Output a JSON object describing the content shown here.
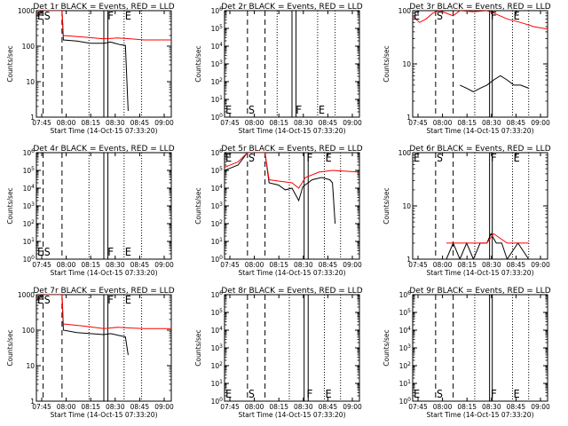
{
  "x_ticks": [
    "07:45",
    "08:00",
    "08:15",
    "08:30",
    "08:45",
    "09:00"
  ],
  "x_label": "Start Time (14-Oct-15 07:33:20)",
  "y_label": "Counts/sec",
  "colors": {
    "events": "#000000",
    "lld": "#ff0000"
  },
  "chart_data": [
    {
      "type": "line",
      "title": "Det 1r BLACK = Events, RED = LLD",
      "ylim": [
        1,
        1000
      ],
      "yticks": [
        1,
        10,
        100,
        1000
      ],
      "ytick_labels": [
        "1",
        "10",
        "100",
        "1000"
      ],
      "markers": [
        "E",
        "S",
        "F",
        "E"
      ],
      "marker_x": [
        0.0,
        0.05,
        0.52,
        0.65
      ],
      "vlines_dashed": [
        0.05,
        0.19
      ],
      "vlines_solid": [
        0.5,
        0.53
      ],
      "vlines_dotted": [
        0.39,
        0.65,
        0.78
      ],
      "series": [
        {
          "name": "BLACK = Events",
          "points": [
            [
              0.0,
              700
            ],
            [
              0.04,
              900
            ],
            [
              0.05,
              1000
            ],
            [
              0.19,
              1000
            ],
            [
              0.2,
              150
            ],
            [
              0.3,
              140
            ],
            [
              0.4,
              120
            ],
            [
              0.5,
              120
            ],
            [
              0.55,
              130
            ],
            [
              0.62,
              110
            ],
            [
              0.66,
              105
            ],
            [
              0.68,
              1.5
            ]
          ]
        },
        {
          "name": "RED = LLD",
          "points": [
            [
              0.0,
              800
            ],
            [
              0.04,
              1000
            ],
            [
              0.19,
              1000
            ],
            [
              0.2,
              200
            ],
            [
              0.35,
              180
            ],
            [
              0.5,
              160
            ],
            [
              0.6,
              170
            ],
            [
              0.7,
              160
            ],
            [
              0.8,
              150
            ],
            [
              1.0,
              150
            ]
          ]
        }
      ]
    },
    {
      "type": "line",
      "title": "Det 2r BLACK = Events, RED = LLD",
      "ylim": [
        1,
        1000000
      ],
      "yticks": [
        1,
        10,
        100,
        1000,
        10000,
        100000,
        1000000
      ],
      "ytick_labels": [
        "10^0",
        "10^1",
        "10^2",
        "10^3",
        "10^4",
        "10^5",
        "10^6"
      ],
      "markers": [
        "E",
        "S",
        "F",
        "E"
      ],
      "marker_x": [
        0.0,
        0.17,
        0.52,
        0.69
      ],
      "vlines_dashed": [
        0.17,
        0.3
      ],
      "vlines_solid": [
        0.5,
        0.53
      ],
      "vlines_dotted": [
        0.39,
        0.69,
        0.82
      ],
      "series": []
    },
    {
      "type": "line",
      "title": "Det 3r BLACK = Events, RED = LLD",
      "ylim": [
        1,
        100
      ],
      "yticks": [
        1,
        10,
        100
      ],
      "ytick_labels": [
        "1",
        "10",
        "100"
      ],
      "markers": [
        "E",
        "S",
        "F",
        "E"
      ],
      "marker_x": [
        0.0,
        0.17,
        0.57,
        0.74
      ],
      "vlines_dashed": [
        0.17,
        0.3
      ],
      "vlines_solid": [
        0.57,
        0.59
      ],
      "vlines_dotted": [
        0.46,
        0.74,
        0.86
      ],
      "series": [
        {
          "name": "BLACK = Events",
          "points": [
            [
              0.35,
              4
            ],
            [
              0.4,
              3.5
            ],
            [
              0.45,
              3
            ],
            [
              0.5,
              3.5
            ],
            [
              0.55,
              4
            ],
            [
              0.6,
              5
            ],
            [
              0.65,
              6
            ],
            [
              0.7,
              5
            ],
            [
              0.75,
              4
            ],
            [
              0.8,
              4
            ],
            [
              0.86,
              3.5
            ]
          ]
        },
        {
          "name": "RED = LLD",
          "points": [
            [
              0.0,
              80
            ],
            [
              0.05,
              60
            ],
            [
              0.1,
              70
            ],
            [
              0.15,
              90
            ],
            [
              0.2,
              100
            ],
            [
              0.3,
              80
            ],
            [
              0.35,
              100
            ],
            [
              0.45,
              95
            ],
            [
              0.55,
              100
            ],
            [
              0.6,
              90
            ],
            [
              0.7,
              70
            ],
            [
              0.8,
              60
            ],
            [
              0.9,
              50
            ],
            [
              1.0,
              45
            ]
          ]
        }
      ]
    },
    {
      "type": "line",
      "title": "Det 4r BLACK = Events, RED = LLD",
      "ylim": [
        1,
        1000000
      ],
      "yticks": [
        1,
        10,
        100,
        1000,
        10000,
        100000,
        1000000
      ],
      "ytick_labels": [
        "10^0",
        "10^1",
        "10^2",
        "10^3",
        "10^4",
        "10^5",
        "10^6"
      ],
      "markers": [
        "E",
        "S",
        "F",
        "E"
      ],
      "marker_x": [
        0.0,
        0.05,
        0.52,
        0.65
      ],
      "vlines_dashed": [
        0.05,
        0.19
      ],
      "vlines_solid": [
        0.5,
        0.53
      ],
      "vlines_dotted": [
        0.39,
        0.65,
        0.78
      ],
      "series": []
    },
    {
      "type": "line",
      "title": "Det 5r BLACK = Events, RED = LLD",
      "ylim": [
        1,
        1000000
      ],
      "yticks": [
        1,
        10,
        100,
        1000,
        10000,
        100000,
        1000000
      ],
      "ytick_labels": [
        "10^0",
        "10^1",
        "10^2",
        "10^3",
        "10^4",
        "10^5",
        "10^6"
      ],
      "markers": [
        "E",
        "S",
        "F",
        "E"
      ],
      "marker_x": [
        0.0,
        0.17,
        0.6,
        0.74
      ],
      "vlines_dashed": [
        0.17,
        0.3
      ],
      "vlines_solid": [
        0.59,
        0.62
      ],
      "vlines_dotted": [
        0.48,
        0.74,
        0.86
      ],
      "series": [
        {
          "name": "BLACK = Events",
          "points": [
            [
              0.0,
              100000
            ],
            [
              0.1,
              200000
            ],
            [
              0.17,
              1000000
            ],
            [
              0.3,
              1000000
            ],
            [
              0.33,
              20000
            ],
            [
              0.4,
              15000
            ],
            [
              0.45,
              8000
            ],
            [
              0.5,
              10000
            ],
            [
              0.55,
              2000
            ],
            [
              0.58,
              12000
            ],
            [
              0.65,
              30000
            ],
            [
              0.72,
              40000
            ],
            [
              0.78,
              30000
            ],
            [
              0.8,
              20000
            ],
            [
              0.82,
              100
            ]
          ]
        },
        {
          "name": "RED = LLD",
          "points": [
            [
              0.0,
              150000
            ],
            [
              0.1,
              300000
            ],
            [
              0.17,
              1000000
            ],
            [
              0.3,
              1000000
            ],
            [
              0.33,
              30000
            ],
            [
              0.4,
              25000
            ],
            [
              0.5,
              20000
            ],
            [
              0.55,
              10000
            ],
            [
              0.6,
              40000
            ],
            [
              0.7,
              80000
            ],
            [
              0.8,
              100000
            ],
            [
              0.9,
              90000
            ],
            [
              1.0,
              80000
            ]
          ]
        }
      ]
    },
    {
      "type": "line",
      "title": "Det 6r BLACK = Events, RED = LLD",
      "ylim": [
        1,
        100
      ],
      "yticks": [
        1,
        10,
        100
      ],
      "ytick_labels": [
        "1",
        "10",
        "100"
      ],
      "markers": [
        "E",
        "S",
        "F",
        "E"
      ],
      "marker_x": [
        0.0,
        0.17,
        0.57,
        0.74
      ],
      "vlines_dashed": [
        0.17,
        0.3
      ],
      "vlines_solid": [
        0.57,
        0.59
      ],
      "vlines_dotted": [
        0.46,
        0.74,
        0.86
      ],
      "series": [
        {
          "name": "BLACK = Events",
          "points": [
            [
              0.25,
              1
            ],
            [
              0.3,
              2
            ],
            [
              0.35,
              1
            ],
            [
              0.4,
              2
            ],
            [
              0.45,
              1
            ],
            [
              0.5,
              2
            ],
            [
              0.55,
              2
            ],
            [
              0.58,
              3
            ],
            [
              0.62,
              2
            ],
            [
              0.66,
              2
            ],
            [
              0.7,
              1
            ],
            [
              0.78,
              2
            ],
            [
              0.86,
              1
            ]
          ]
        },
        {
          "name": "RED = LLD",
          "points": [
            [
              0.25,
              2
            ],
            [
              0.4,
              2
            ],
            [
              0.55,
              2
            ],
            [
              0.6,
              3
            ],
            [
              0.7,
              2
            ],
            [
              0.86,
              2
            ]
          ]
        }
      ]
    },
    {
      "type": "line",
      "title": "Det 7r BLACK = Events, RED = LLD",
      "ylim": [
        1,
        1000
      ],
      "yticks": [
        1,
        10,
        100,
        1000
      ],
      "ytick_labels": [
        "1",
        "10",
        "100",
        "1000"
      ],
      "markers": [
        "E",
        "S",
        "F",
        "E"
      ],
      "marker_x": [
        0.0,
        0.05,
        0.52,
        0.65
      ],
      "vlines_dashed": [
        0.05,
        0.19
      ],
      "vlines_solid": [
        0.5,
        0.53
      ],
      "vlines_dotted": [
        0.39,
        0.65,
        0.78
      ],
      "series": [
        {
          "name": "BLACK = Events",
          "points": [
            [
              0.0,
              700
            ],
            [
              0.04,
              900
            ],
            [
              0.05,
              1000
            ],
            [
              0.19,
              1000
            ],
            [
              0.2,
              100
            ],
            [
              0.3,
              85
            ],
            [
              0.4,
              80
            ],
            [
              0.5,
              75
            ],
            [
              0.55,
              80
            ],
            [
              0.62,
              70
            ],
            [
              0.66,
              65
            ],
            [
              0.68,
              20
            ]
          ]
        },
        {
          "name": "RED = LLD",
          "points": [
            [
              0.0,
              800
            ],
            [
              0.04,
              1000
            ],
            [
              0.19,
              1000
            ],
            [
              0.2,
              150
            ],
            [
              0.35,
              130
            ],
            [
              0.5,
              110
            ],
            [
              0.6,
              120
            ],
            [
              0.7,
              115
            ],
            [
              0.8,
              110
            ],
            [
              1.0,
              110
            ]
          ]
        }
      ]
    },
    {
      "type": "line",
      "title": "Det 8r BLACK = Events, RED = LLD",
      "ylim": [
        1,
        1000000
      ],
      "yticks": [
        1,
        10,
        100,
        1000,
        10000,
        100000,
        1000000
      ],
      "ytick_labels": [
        "10^0",
        "10^1",
        "10^2",
        "10^3",
        "10^4",
        "10^5",
        "10^6"
      ],
      "markers": [
        "E",
        "S",
        "F",
        "E"
      ],
      "marker_x": [
        0.0,
        0.17,
        0.6,
        0.74
      ],
      "vlines_dashed": [
        0.17,
        0.3
      ],
      "vlines_solid": [
        0.59,
        0.62
      ],
      "vlines_dotted": [
        0.48,
        0.74,
        0.86
      ],
      "series": []
    },
    {
      "type": "line",
      "title": "Det 9r BLACK = Events, RED = LLD",
      "ylim": [
        1,
        1000000
      ],
      "yticks": [
        1,
        10,
        100,
        1000,
        10000,
        100000,
        1000000
      ],
      "ytick_labels": [
        "10^0",
        "10^1",
        "10^2",
        "10^3",
        "10^4",
        "10^5",
        "10^6"
      ],
      "markers": [
        "E",
        "S",
        "F",
        "E"
      ],
      "marker_x": [
        0.0,
        0.17,
        0.57,
        0.74
      ],
      "vlines_dashed": [
        0.17,
        0.3
      ],
      "vlines_solid": [
        0.57,
        0.59
      ],
      "vlines_dotted": [
        0.46,
        0.74,
        0.86
      ],
      "series": []
    }
  ]
}
